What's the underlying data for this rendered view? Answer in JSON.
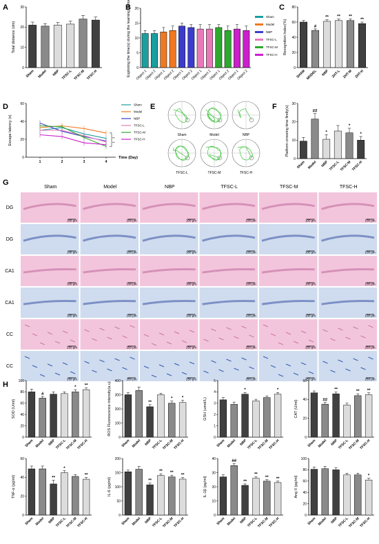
{
  "panel_letters": {
    "A": "A",
    "B": "B",
    "C": "C",
    "D": "D",
    "E": "E",
    "F": "F",
    "G": "G",
    "H": "H"
  },
  "colors": {
    "sham": "#1a9e9e",
    "model": "#f07820",
    "nbp": "#3c3ccc",
    "tfscl": "#e87ab8",
    "tfscm": "#2ea82e",
    "tfsch": "#cc1fcc",
    "bar_dark": "#404040",
    "bar_mid": "#8a8a8a",
    "bar_light": "#dcdcdc",
    "he_pink": "#f3c5dc",
    "nissl_blue": "#cfdcef"
  },
  "groups": [
    "Sham",
    "Model",
    "NBP",
    "TFSC-L",
    "TFSC-M",
    "TFSC-H"
  ],
  "chart_data": [
    {
      "id": "A",
      "type": "bar",
      "ylabel": "Total distance (dm)",
      "ylim": [
        0,
        30
      ],
      "yticks": [
        0,
        10,
        20,
        30
      ],
      "categories": [
        "Sham",
        "Model",
        "NBP",
        "TFSC-L",
        "TFSC-M",
        "TFSC-H"
      ],
      "values": [
        21,
        20.5,
        21,
        21.5,
        24,
        23.5
      ],
      "errors": [
        1.5,
        1.2,
        1.3,
        1.4,
        1.8,
        1.5
      ],
      "sig": [
        "",
        "",
        "",
        "",
        "",
        ""
      ]
    },
    {
      "id": "B",
      "type": "bar",
      "ylabel": "Exploring the time(s) during the learning period",
      "ylim": [
        0,
        20
      ],
      "yticks": [
        0,
        5,
        10,
        15,
        20
      ],
      "categories": [
        "Object 1",
        "Object 2",
        "Object 1",
        "Object 2",
        "Object 1",
        "Object 2",
        "Object 1",
        "Object 2",
        "Object 1",
        "Object 2",
        "Object 1",
        "Object 2"
      ],
      "values": [
        11.5,
        11.5,
        12,
        12.5,
        14,
        13.5,
        13,
        13,
        13.5,
        12.5,
        13,
        12.5
      ],
      "errors": [
        1,
        1,
        1.5,
        1.5,
        1,
        1,
        1.5,
        1.5,
        1,
        1.5,
        1.5,
        1.5
      ],
      "legend": [
        "Sham",
        "Model",
        "NBP",
        "TFSC-L",
        "TFSC-M",
        "TFSC-H"
      ]
    },
    {
      "id": "C",
      "type": "bar",
      "ylabel": "Recognition Index(%)",
      "ylim": [
        0,
        80
      ],
      "yticks": [
        0,
        20,
        40,
        60,
        80
      ],
      "categories": [
        "SHAM",
        "MODEL",
        "NBP",
        "ZHT-L",
        "ZHT-M",
        "ZHT-H"
      ],
      "values": [
        60,
        49,
        61,
        62,
        62,
        58
      ],
      "errors": [
        2,
        2,
        2,
        2,
        2,
        2
      ],
      "sig": [
        "",
        "#",
        "**",
        "**",
        "**",
        "**"
      ]
    },
    {
      "id": "D",
      "type": "line",
      "ylabel": "Escape latency (s)",
      "xlabel": "Time (Day)",
      "ylim": [
        0,
        60
      ],
      "yticks": [
        0,
        20,
        40,
        60
      ],
      "x": [
        1,
        2,
        3,
        4
      ],
      "series": [
        {
          "name": "Sham",
          "values": [
            30,
            33,
            26,
            21
          ]
        },
        {
          "name": "Model",
          "values": [
            33,
            35,
            32,
            27
          ]
        },
        {
          "name": "NBP",
          "values": [
            38,
            29,
            23,
            18
          ]
        },
        {
          "name": "TFSC-L",
          "values": [
            30,
            30,
            24,
            17
          ]
        },
        {
          "name": "TFSC-M",
          "values": [
            35,
            34,
            22,
            12
          ]
        },
        {
          "name": "TFSC-H",
          "values": [
            25,
            23,
            16,
            14
          ]
        }
      ],
      "sig": [
        "**",
        "**"
      ]
    },
    {
      "id": "F",
      "type": "bar",
      "ylabel": "Platform crossing time firstly(s)",
      "ylim": [
        0,
        30
      ],
      "yticks": [
        0,
        10,
        20,
        30
      ],
      "categories": [
        "Sham",
        "Model",
        "NBP",
        "TFSC-L",
        "TFSC-M",
        "TFSC-H"
      ],
      "values": [
        9.5,
        21.5,
        10.5,
        15,
        14,
        10
      ],
      "errors": [
        2,
        3,
        2.5,
        3,
        2.5,
        2
      ],
      "sig": [
        "",
        "##",
        "*",
        "",
        "*",
        "*"
      ]
    },
    {
      "id": "H1",
      "type": "bar",
      "ylabel": "SOD (U/ml)",
      "ylim": [
        0,
        100
      ],
      "yticks": [
        0,
        20,
        40,
        60,
        80,
        100
      ],
      "categories": [
        "Sham",
        "Model",
        "NBP",
        "TFSC-L",
        "TFSC-M",
        "TFSC-H"
      ],
      "values": [
        80,
        69,
        76,
        77,
        80,
        84
      ],
      "errors": [
        5,
        3,
        4,
        3,
        4,
        3
      ],
      "sig": [
        "",
        "#",
        "",
        "",
        "*",
        "**"
      ]
    },
    {
      "id": "H2",
      "type": "bar",
      "ylabel": "ROS Fluorescence intensity(a.u)",
      "ylim": [
        0,
        400
      ],
      "yticks": [
        0,
        100,
        200,
        300,
        400
      ],
      "categories": [
        "Sham",
        "Model",
        "NBP",
        "TFSC-L",
        "TFSC-M",
        "TFSC-H"
      ],
      "values": [
        300,
        330,
        215,
        300,
        240,
        245
      ],
      "errors": [
        15,
        25,
        15,
        10,
        15,
        15
      ],
      "sig": [
        "",
        "",
        "**",
        "",
        "*",
        "*"
      ]
    },
    {
      "id": "H3",
      "type": "bar",
      "ylabel": "GSH (umol/L)",
      "ylim": [
        0,
        5
      ],
      "yticks": [
        0,
        1,
        2,
        3,
        4,
        5
      ],
      "categories": [
        "Sham",
        "Model",
        "NBP",
        "TFSC-L",
        "TFSC-M",
        "TFSC-H"
      ],
      "values": [
        3.3,
        2.9,
        3.8,
        3.2,
        3.5,
        3.8
      ],
      "errors": [
        0.2,
        0.2,
        0.15,
        0.15,
        0.15,
        0.15
      ],
      "sig": [
        "",
        "",
        "*",
        "",
        "",
        "*"
      ]
    },
    {
      "id": "H4",
      "type": "bar",
      "ylabel": "CAT (U/ml)",
      "ylim": [
        0,
        60
      ],
      "yticks": [
        0,
        20,
        40,
        60
      ],
      "categories": [
        "Sham",
        "Model",
        "NBP",
        "TFSC-L",
        "TFSC-M",
        "TFSC-H"
      ],
      "values": [
        47,
        35,
        46,
        34,
        44,
        45
      ],
      "errors": [
        2,
        2,
        2,
        2,
        2,
        2
      ],
      "sig": [
        "",
        "##",
        "**",
        "",
        "**",
        "**"
      ]
    },
    {
      "id": "H5",
      "type": "bar",
      "ylabel": "TNF-α (pg/ml)",
      "ylim": [
        0,
        60
      ],
      "yticks": [
        0,
        20,
        40,
        60
      ],
      "categories": [
        "Sham",
        "Model",
        "NBP",
        "TFSC-L",
        "TFSC-M",
        "TFSC-H"
      ],
      "values": [
        49,
        49,
        33,
        45,
        41,
        38
      ],
      "errors": [
        3,
        3,
        4,
        2,
        2,
        2
      ],
      "sig": [
        "",
        "",
        "**",
        "*",
        "",
        "**"
      ]
    },
    {
      "id": "H6",
      "type": "bar",
      "ylabel": "IL-6 (pg/ml)",
      "ylim": [
        0,
        200
      ],
      "yticks": [
        0,
        50,
        100,
        150,
        200
      ],
      "categories": [
        "Sham",
        "Model",
        "NBP",
        "TFSC-L",
        "TFSC-M",
        "TFSC-H"
      ],
      "values": [
        153,
        162,
        107,
        140,
        135,
        127
      ],
      "errors": [
        6,
        10,
        6,
        6,
        6,
        6
      ],
      "sig": [
        "",
        "",
        "**",
        "**",
        "**",
        "**"
      ]
    },
    {
      "id": "H7",
      "type": "bar",
      "ylabel": "IL-1β (pg/ml)",
      "ylim": [
        0,
        40
      ],
      "yticks": [
        0,
        10,
        20,
        30,
        40
      ],
      "categories": [
        "Sham",
        "Model",
        "NBP",
        "TFSC-L",
        "TFSC-M",
        "TFSC-H"
      ],
      "values": [
        27,
        35,
        21,
        26,
        24,
        23
      ],
      "errors": [
        1.5,
        1.5,
        1,
        1,
        1,
        1
      ],
      "sig": [
        "",
        "##",
        "**",
        "**",
        "**",
        "**"
      ]
    },
    {
      "id": "H8",
      "type": "bar",
      "ylabel": "Ang II (pg/ml)",
      "ylim": [
        0,
        100
      ],
      "yticks": [
        0,
        20,
        40,
        60,
        80,
        100
      ],
      "categories": [
        "Sham",
        "Model",
        "NBP",
        "TFSC-L",
        "TFSC-M",
        "TFSC-H"
      ],
      "values": [
        81,
        82,
        80,
        71,
        71,
        62
      ],
      "errors": [
        4,
        4,
        4,
        3,
        3,
        3
      ],
      "sig": [
        "",
        "",
        "",
        "",
        "",
        "*"
      ]
    }
  ],
  "maze": {
    "labels": [
      "Sham",
      "Model",
      "NBP",
      "TFSC-L",
      "TFSC-M",
      "TFSC-H"
    ]
  },
  "histology": {
    "columns": [
      "Sham",
      "Model",
      "NBP",
      "TFSC-L",
      "TFSC-M",
      "TFSC-H"
    ],
    "rows": [
      "DG",
      "DG",
      "CA1",
      "CA1",
      "CC",
      "CC"
    ],
    "stain": [
      "he",
      "nissl",
      "he",
      "nissl",
      "he",
      "nissl"
    ],
    "scalebars": [
      "100 μm",
      "100 μm",
      "100 μm",
      "100 μm",
      "250 μm",
      "250 μm"
    ]
  }
}
